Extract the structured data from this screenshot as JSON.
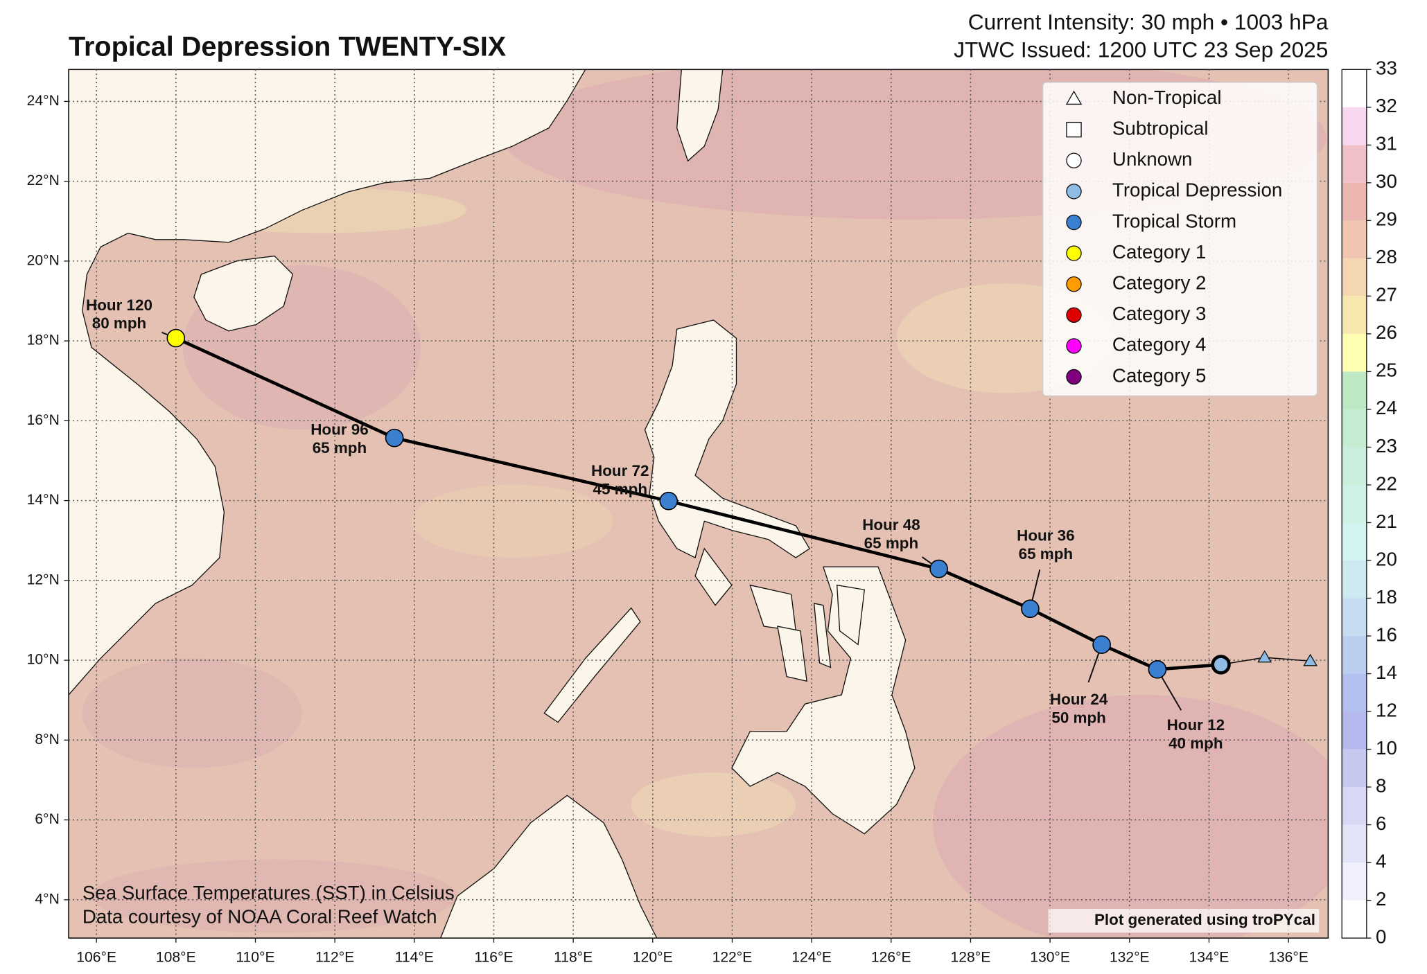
{
  "chart_data": {
    "type": "map",
    "title": "Tropical Depression TWENTY-SIX",
    "subtitle": [
      "Current Intensity: 30 mph • 1003 hPa",
      "JTWC Issued: 1200 UTC 23 Sep 2025"
    ],
    "annotations": [
      "Sea Surface Temperatures (SST) in Celsius",
      "Data courtesy of NOAA Coral Reef Watch",
      "Plot generated using troPYcal"
    ],
    "xlim": [
      105.3,
      137.0
    ],
    "ylim": [
      3.04,
      24.8
    ],
    "xticks": [
      {
        "value": 106,
        "label": "106°E"
      },
      {
        "value": 108,
        "label": "108°E"
      },
      {
        "value": 110,
        "label": "110°E"
      },
      {
        "value": 112,
        "label": "112°E"
      },
      {
        "value": 114,
        "label": "114°E"
      },
      {
        "value": 116,
        "label": "116°E"
      },
      {
        "value": 118,
        "label": "118°E"
      },
      {
        "value": 120,
        "label": "120°E"
      },
      {
        "value": 122,
        "label": "122°E"
      },
      {
        "value": 124,
        "label": "124°E"
      },
      {
        "value": 126,
        "label": "126°E"
      },
      {
        "value": 128,
        "label": "128°E"
      },
      {
        "value": 130,
        "label": "130°E"
      },
      {
        "value": 132,
        "label": "132°E"
      },
      {
        "value": 134,
        "label": "134°E"
      },
      {
        "value": 136,
        "label": "136°E"
      }
    ],
    "yticks": [
      {
        "value": 4,
        "label": "4°N"
      },
      {
        "value": 6,
        "label": "6°N"
      },
      {
        "value": 8,
        "label": "8°N"
      },
      {
        "value": 10,
        "label": "10°N"
      },
      {
        "value": 12,
        "label": "12°N"
      },
      {
        "value": 14,
        "label": "14°N"
      },
      {
        "value": 16,
        "label": "16°N"
      },
      {
        "value": 18,
        "label": "18°N"
      },
      {
        "value": 20,
        "label": "20°N"
      },
      {
        "value": 22,
        "label": "22°N"
      },
      {
        "value": 24,
        "label": "24°N"
      }
    ],
    "grid": true,
    "legend": {
      "position": "upper right",
      "entries": [
        {
          "name": "Non-Tropical",
          "marker": "triangle",
          "color": "#ffffff"
        },
        {
          "name": "Subtropical",
          "marker": "square",
          "color": "#ffffff"
        },
        {
          "name": "Unknown",
          "marker": "circle",
          "color": "#ffffff"
        },
        {
          "name": "Tropical Depression",
          "marker": "circle",
          "color": "#8fbce6"
        },
        {
          "name": "Tropical Storm",
          "marker": "circle",
          "color": "#3a7fd0"
        },
        {
          "name": "Category 1",
          "marker": "circle",
          "color": "#ffff00"
        },
        {
          "name": "Category 2",
          "marker": "circle",
          "color": "#ff9d00"
        },
        {
          "name": "Category 3",
          "marker": "circle",
          "color": "#e00000"
        },
        {
          "name": "Category 4",
          "marker": "circle",
          "color": "#ff00ff"
        },
        {
          "name": "Category 5",
          "marker": "circle",
          "color": "#800080"
        }
      ]
    },
    "track": {
      "x": [
        134.3,
        132.7,
        131.3,
        129.5,
        127.2,
        120.4,
        113.5,
        108.0
      ],
      "y": [
        9.89,
        9.77,
        10.39,
        11.29,
        12.29,
        13.99,
        15.57,
        18.07
      ],
      "hours": [
        null,
        "Hour 12",
        "Hour 24",
        "Hour 36",
        "Hour 48",
        "Hour 72",
        "Hour 96",
        "Hour 120"
      ],
      "winds": [
        null,
        "40 mph",
        "50 mph",
        "65 mph",
        "65 mph",
        "45 mph",
        "65 mph",
        "80 mph"
      ],
      "colors": [
        "#8fbce6",
        "#3a7fd0",
        "#3a7fd0",
        "#3a7fd0",
        "#3a7fd0",
        "#3a7fd0",
        "#3a7fd0",
        "#ffff00"
      ]
    },
    "past": {
      "x": [
        135.4,
        136.55
      ],
      "y": [
        10.07,
        9.98
      ],
      "color": "#8fbce6"
    },
    "colorbar": {
      "levels": [
        0,
        2,
        4,
        6,
        8,
        10,
        12,
        14,
        16,
        18,
        20,
        21,
        22,
        23,
        24,
        25,
        26,
        27,
        28,
        29,
        30,
        31,
        32,
        33
      ],
      "colors": [
        "#ffffff",
        "#f0f0fc",
        "#e4e4f8",
        "#d6d8f4",
        "#c6c8f0",
        "#b4b8ec",
        "#b4c0f0",
        "#bccef0",
        "#c6dcf0",
        "#cceaf0",
        "#d2f4f0",
        "#d0f2e6",
        "#cbeedc",
        "#c4ecd0",
        "#bce8c4",
        "#fffeb0",
        "#f8e8b0",
        "#f4d6b0",
        "#f0c6b0",
        "#ecb6b0",
        "#f0c0c8",
        "#f8d8f0"
      ]
    }
  }
}
